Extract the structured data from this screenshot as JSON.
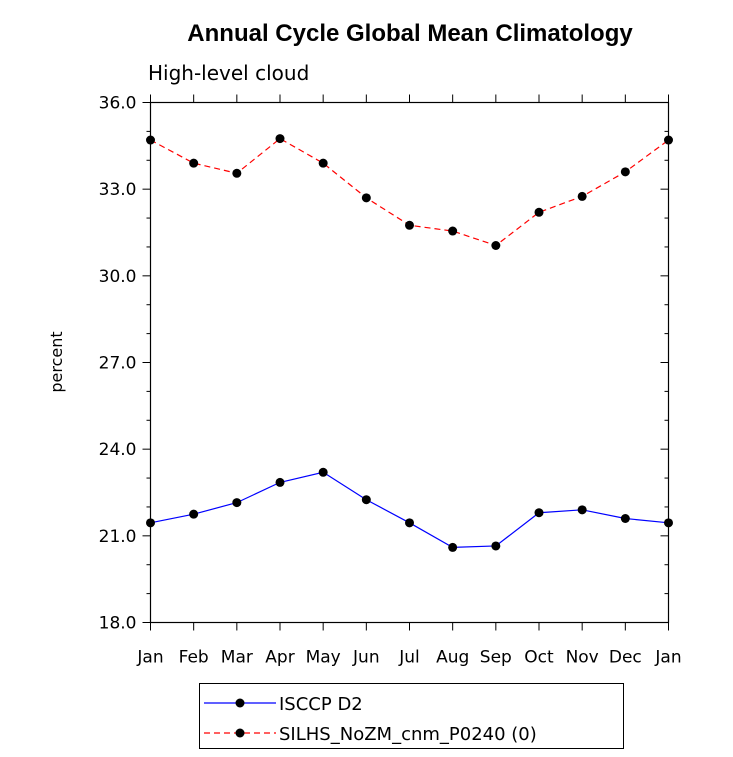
{
  "chart_data": {
    "type": "line",
    "title": "Annual Cycle Global Mean Climatology",
    "subtitle": "High-level cloud",
    "xlabel": "",
    "ylabel": "percent",
    "categories": [
      "Jan",
      "Feb",
      "Mar",
      "Apr",
      "May",
      "Jun",
      "Jul",
      "Aug",
      "Sep",
      "Oct",
      "Nov",
      "Dec",
      "Jan"
    ],
    "ylim": [
      18.0,
      36.0
    ],
    "yticks": [
      "18.0",
      "21.0",
      "24.0",
      "27.0",
      "30.0",
      "33.0",
      "36.0"
    ],
    "grid": false,
    "legend_position": "bottom",
    "series": [
      {
        "name": "ISCCP D2",
        "color": "#0000ff",
        "line_style": "solid",
        "values": [
          21.45,
          21.75,
          22.15,
          22.85,
          23.2,
          22.25,
          21.45,
          20.6,
          20.65,
          21.8,
          21.9,
          21.6,
          21.45
        ]
      },
      {
        "name": "SILHS_NoZM_cnm_P0240 (0)",
        "color": "#ff0000",
        "line_style": "dashed",
        "values": [
          34.7,
          33.9,
          33.55,
          34.75,
          33.9,
          32.7,
          31.75,
          31.55,
          31.05,
          32.2,
          32.75,
          33.6,
          34.7
        ]
      }
    ]
  }
}
